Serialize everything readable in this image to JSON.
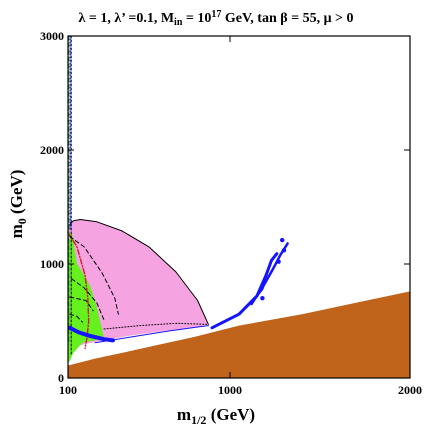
{
  "chart_data": {
    "type": "area",
    "title": {
      "lambda": "λ = 1, λ’ =0.1, M",
      "in_sub": "in",
      "mid": " = 10",
      "exp": "17",
      "rest": " GeV, tan β = 55,  μ > 0"
    },
    "xlabel": {
      "main": "m",
      "sub": "1/2",
      "unit": " (GeV)"
    },
    "ylabel": {
      "main": "m",
      "sub": "0",
      "unit": " (GeV)"
    },
    "xlim": [
      100,
      2000
    ],
    "ylim": [
      0,
      3000
    ],
    "xticks": [
      {
        "value": 100,
        "label": "100"
      },
      {
        "value": 1000,
        "label": "1000"
      },
      {
        "value": 2000,
        "label": "2000"
      }
    ],
    "yticks": [
      {
        "value": 0,
        "label": "0"
      },
      {
        "value": 1000,
        "label": "1000"
      },
      {
        "value": 2000,
        "label": "2000"
      },
      {
        "value": 3000,
        "label": "3000"
      }
    ],
    "regions": [
      {
        "name": "excluded-stau-lsp",
        "color": "#c0641c",
        "points": [
          [
            100,
            0
          ],
          [
            2000,
            0
          ],
          [
            2000,
            760
          ],
          [
            1700,
            660
          ],
          [
            1400,
            560
          ],
          [
            1050,
            460
          ],
          [
            800,
            360
          ],
          [
            600,
            290
          ],
          [
            400,
            220
          ],
          [
            250,
            170
          ],
          [
            150,
            130
          ],
          [
            100,
            110
          ]
        ]
      },
      {
        "name": "pink",
        "color": "#f5a3e1",
        "points": [
          [
            100,
            1330
          ],
          [
            130,
            1380
          ],
          [
            170,
            1390
          ],
          [
            260,
            1370
          ],
          [
            400,
            1290
          ],
          [
            550,
            1150
          ],
          [
            700,
            930
          ],
          [
            820,
            680
          ],
          [
            880,
            470
          ],
          [
            800,
            440
          ],
          [
            620,
            410
          ],
          [
            440,
            370
          ],
          [
            300,
            330
          ],
          [
            200,
            300
          ],
          [
            150,
            280
          ],
          [
            110,
            260
          ],
          [
            100,
            250
          ]
        ]
      },
      {
        "name": "green",
        "color": "#66f01e",
        "points": [
          [
            100,
            1150
          ],
          [
            120,
            1290
          ],
          [
            150,
            1000
          ],
          [
            190,
            900
          ],
          [
            225,
            800
          ],
          [
            260,
            620
          ],
          [
            300,
            350
          ],
          [
            250,
            330
          ],
          [
            180,
            310
          ],
          [
            130,
            220
          ],
          [
            110,
            150
          ],
          [
            100,
            130
          ]
        ]
      }
    ],
    "lines": [
      {
        "name": "pink-boundary",
        "color": "#000000",
        "dash": "none",
        "width": 1,
        "points": [
          [
            100,
            1330
          ],
          [
            130,
            1380
          ],
          [
            170,
            1390
          ],
          [
            260,
            1370
          ],
          [
            400,
            1290
          ],
          [
            550,
            1150
          ],
          [
            700,
            930
          ],
          [
            820,
            680
          ],
          [
            880,
            470
          ]
        ]
      },
      {
        "name": "red-dashdot",
        "color": "#d21e1e",
        "dash": "5,2,1,2",
        "width": 1.4,
        "points": [
          [
            100,
            1280
          ],
          [
            150,
            1150
          ],
          [
            195,
            900
          ],
          [
            210,
            700
          ],
          [
            215,
            500
          ],
          [
            205,
            350
          ],
          [
            195,
            260
          ]
        ]
      },
      {
        "name": "dashed-1",
        "color": "#000000",
        "dash": "4,3",
        "width": 1,
        "points": [
          [
            110,
            1240
          ],
          [
            190,
            1150
          ],
          [
            290,
            920
          ],
          [
            360,
            700
          ],
          [
            380,
            560
          ]
        ]
      },
      {
        "name": "dashed-2",
        "color": "#000000",
        "dash": "4,3",
        "width": 1,
        "points": [
          [
            120,
            870
          ],
          [
            190,
            790
          ],
          [
            260,
            660
          ],
          [
            300,
            510
          ]
        ]
      },
      {
        "name": "dashed-3",
        "color": "#000000",
        "dash": "4,3",
        "width": 1,
        "points": [
          [
            110,
            710
          ],
          [
            200,
            680
          ],
          [
            240,
            590
          ]
        ]
      },
      {
        "name": "dashed-4",
        "color": "#000000",
        "dash": "4,3",
        "width": 1,
        "points": [
          [
            110,
            560
          ],
          [
            150,
            540
          ],
          [
            180,
            490
          ]
        ]
      },
      {
        "name": "pink-lower-edge",
        "color": "#000000",
        "dash": "1,2",
        "width": 1,
        "points": [
          [
            300,
            430
          ],
          [
            500,
            460
          ],
          [
            700,
            480
          ],
          [
            880,
            470
          ]
        ]
      },
      {
        "name": "black-dotted-vertical",
        "color": "#000000",
        "dash": "2,2",
        "width": 1,
        "points": [
          [
            118,
            3000
          ],
          [
            118,
            200
          ]
        ]
      },
      {
        "name": "green-dashed-vertical",
        "color": "#1ea01e",
        "dash": "4,3",
        "width": 1.3,
        "points": [
          [
            104,
            3000
          ],
          [
            104,
            300
          ]
        ]
      },
      {
        "name": "blue-dotted-vertical",
        "color": "#1e1eff",
        "dash": "1,2",
        "width": 1.3,
        "points": [
          [
            112,
            3000
          ],
          [
            112,
            1300
          ]
        ]
      },
      {
        "name": "blue-thin-lower",
        "color": "#1414ff",
        "dash": "none",
        "width": 1,
        "points": [
          [
            250,
            310
          ],
          [
            450,
            360
          ],
          [
            650,
            410
          ],
          [
            830,
            450
          ],
          [
            880,
            460
          ]
        ]
      },
      {
        "name": "blue-strip-main",
        "color": "#1414ff",
        "dash": "none",
        "width": 4,
        "points": [
          [
            110,
            440
          ],
          [
            160,
            400
          ],
          [
            220,
            370
          ],
          [
            300,
            340
          ],
          [
            350,
            330
          ]
        ]
      },
      {
        "name": "blue-strip-right-a",
        "color": "#1414ff",
        "dash": "none",
        "width": 3,
        "points": [
          [
            900,
            440
          ],
          [
            1050,
            560
          ],
          [
            1150,
            720
          ],
          [
            1200,
            900
          ],
          [
            1230,
            1030
          ],
          [
            1260,
            1090
          ]
        ]
      },
      {
        "name": "blue-strip-right-b",
        "color": "#1414ff",
        "dash": "none",
        "width": 2.5,
        "points": [
          [
            1120,
            650
          ],
          [
            1190,
            820
          ],
          [
            1240,
            960
          ],
          [
            1280,
            1080
          ],
          [
            1320,
            1180
          ]
        ]
      },
      {
        "name": "blue-strip-right-c",
        "color": "#1414ff",
        "dash": "none",
        "width": 2,
        "points": [
          [
            1080,
            610
          ],
          [
            1130,
            680
          ],
          [
            1180,
            780
          ],
          [
            1200,
            860
          ]
        ]
      }
    ],
    "markers": [
      {
        "name": "blue-marks",
        "color": "#1414ff",
        "points": [
          [
            1290,
            1210
          ],
          [
            1300,
            1120
          ],
          [
            1270,
            1020
          ],
          [
            1180,
            700
          ]
        ]
      }
    ],
    "grid": false,
    "legend": "none"
  }
}
